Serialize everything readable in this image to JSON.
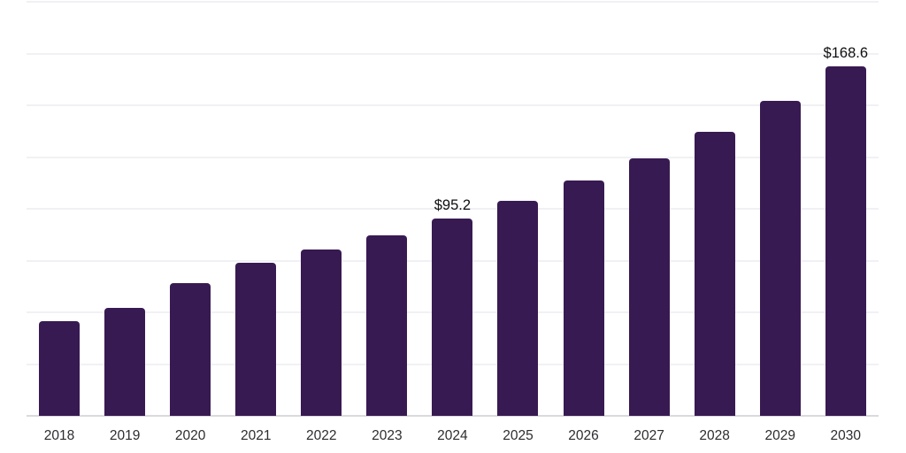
{
  "chart_data": {
    "type": "bar",
    "title": "",
    "xlabel": "",
    "ylabel": "",
    "legend": "none",
    "categories": [
      "2018",
      "2019",
      "2020",
      "2021",
      "2022",
      "2023",
      "2024",
      "2025",
      "2026",
      "2027",
      "2028",
      "2029",
      "2030"
    ],
    "values": [
      45.6,
      52.0,
      63.9,
      74.1,
      80.5,
      87.3,
      95.2,
      104.0,
      113.8,
      124.4,
      137.2,
      152.1,
      168.6
    ],
    "data_labels": {
      "2024": "$95.2",
      "2030": "$168.6"
    },
    "ylim": [
      0,
      200
    ],
    "gridline_interval": 25,
    "y_axis_tick_labels_visible": false,
    "grid": "horizontal",
    "colors": {
      "bar": "#381A52",
      "data_label_text": "#0f0f10",
      "axis_tick_text": "#2d2d31",
      "gridline": "#f1f1f5",
      "baseline": "#dadade",
      "background": "#ffffff"
    }
  }
}
